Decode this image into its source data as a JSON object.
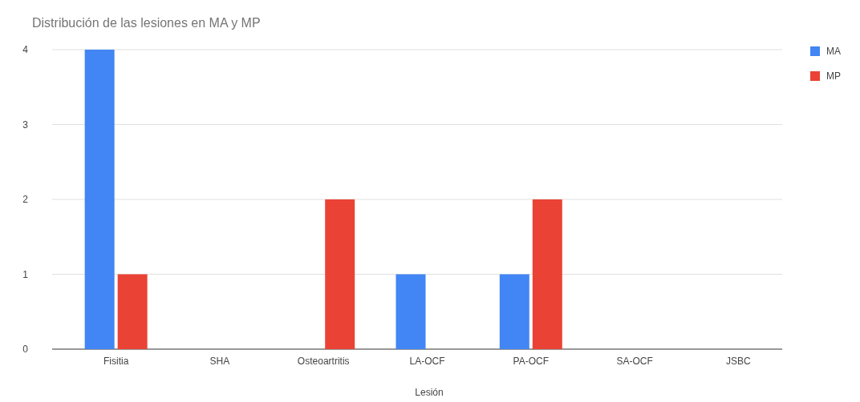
{
  "chart_data": {
    "type": "bar",
    "title": "Distribución de las lesiones en MA y MP",
    "xlabel": "Lesión",
    "categories": [
      "Fisitia",
      "SHA",
      "Osteoartritis",
      "LA-OCF",
      "PA-OCF",
      "SA-OCF",
      "JSBC"
    ],
    "series": [
      {
        "name": "MA",
        "color": "#4285f4",
        "values": [
          4,
          0,
          0,
          1,
          1,
          0,
          0
        ]
      },
      {
        "name": "MP",
        "color": "#ea4335",
        "values": [
          1,
          0,
          2,
          0,
          2,
          0,
          0
        ]
      }
    ],
    "ylim": [
      0,
      4
    ],
    "yticks": [
      0,
      1,
      2,
      3,
      4
    ],
    "grid": "y",
    "legend": "top right"
  }
}
